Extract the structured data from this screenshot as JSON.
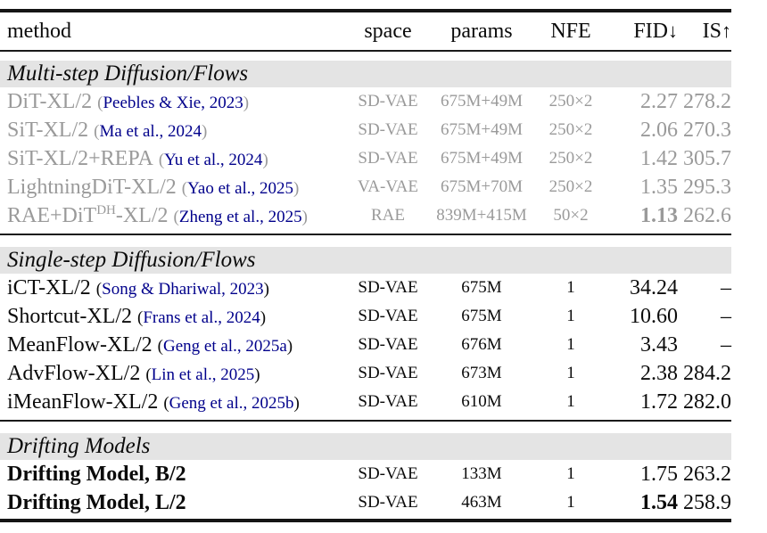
{
  "header": {
    "method": "method",
    "space": "space",
    "params": "params",
    "nfe": "NFE",
    "fid": "FID",
    "fid_arrow": "↓",
    "is": "IS",
    "is_arrow": "↑"
  },
  "colors": {
    "citation": "#00008b",
    "muted_text": "#9a9a9a",
    "section_band": "#e4e4e4"
  },
  "sections": [
    {
      "title": "Multi-step Diffusion/Flows",
      "muted": true,
      "rows": [
        {
          "method_pre": "DiT-XL/2",
          "method_sup": "",
          "method_post": "",
          "cite": "Peebles & Xie, 2023",
          "space": "SD-VAE",
          "params": "675M+49M",
          "nfe": "250×2",
          "fid": "2.27",
          "fid_bold": false,
          "is": "278.2",
          "method_bold": false
        },
        {
          "method_pre": "SiT-XL/2",
          "method_sup": "",
          "method_post": "",
          "cite": "Ma et al., 2024",
          "space": "SD-VAE",
          "params": "675M+49M",
          "nfe": "250×2",
          "fid": "2.06",
          "fid_bold": false,
          "is": "270.3",
          "method_bold": false
        },
        {
          "method_pre": "SiT-XL/2+REPA",
          "method_sup": "",
          "method_post": "",
          "cite": "Yu et al., 2024",
          "space": "SD-VAE",
          "params": "675M+49M",
          "nfe": "250×2",
          "fid": "1.42",
          "fid_bold": false,
          "is": "305.7",
          "method_bold": false
        },
        {
          "method_pre": "LightningDiT-XL/2",
          "method_sup": "",
          "method_post": "",
          "cite": "Yao et al., 2025",
          "space": "VA-VAE",
          "params": "675M+70M",
          "nfe": "250×2",
          "fid": "1.35",
          "fid_bold": false,
          "is": "295.3",
          "method_bold": false
        },
        {
          "method_pre": "RAE+DiT",
          "method_sup": "DH",
          "method_post": "-XL/2",
          "cite": "Zheng et al., 2025",
          "space": "RAE",
          "params": "839M+415M",
          "nfe": "50×2",
          "fid": "1.13",
          "fid_bold": true,
          "is": "262.6",
          "method_bold": false
        }
      ]
    },
    {
      "title": "Single-step Diffusion/Flows",
      "muted": false,
      "rows": [
        {
          "method_pre": "iCT-XL/2",
          "method_sup": "",
          "method_post": "",
          "cite": "Song & Dhariwal, 2023",
          "space": "SD-VAE",
          "params": "675M",
          "nfe": "1",
          "fid": "34.24",
          "fid_bold": false,
          "is": "–",
          "method_bold": false
        },
        {
          "method_pre": "Shortcut-XL/2",
          "method_sup": "",
          "method_post": "",
          "cite": "Frans et al., 2024",
          "space": "SD-VAE",
          "params": "675M",
          "nfe": "1",
          "fid": "10.60",
          "fid_bold": false,
          "is": "–",
          "method_bold": false
        },
        {
          "method_pre": "MeanFlow-XL/2",
          "method_sup": "",
          "method_post": "",
          "cite": "Geng et al., 2025a",
          "space": "SD-VAE",
          "params": "676M",
          "nfe": "1",
          "fid": "3.43",
          "fid_bold": false,
          "is": "–",
          "method_bold": false
        },
        {
          "method_pre": "AdvFlow-XL/2",
          "method_sup": "",
          "method_post": "",
          "cite": "Lin et al., 2025",
          "space": "SD-VAE",
          "params": "673M",
          "nfe": "1",
          "fid": "2.38",
          "fid_bold": false,
          "is": "284.2",
          "method_bold": false
        },
        {
          "method_pre": "iMeanFlow-XL/2",
          "method_sup": "",
          "method_post": "",
          "cite": "Geng et al., 2025b",
          "space": "SD-VAE",
          "params": "610M",
          "nfe": "1",
          "fid": "1.72",
          "fid_bold": false,
          "is": "282.0",
          "method_bold": false
        }
      ]
    },
    {
      "title": "Drifting Models",
      "muted": false,
      "rows": [
        {
          "method_pre": "Drifting Model, B/2",
          "method_sup": "",
          "method_post": "",
          "cite": "",
          "space": "SD-VAE",
          "params": "133M",
          "nfe": "1",
          "fid": "1.75",
          "fid_bold": false,
          "is": "263.2",
          "method_bold": true
        },
        {
          "method_pre": "Drifting Model, L/2",
          "method_sup": "",
          "method_post": "",
          "cite": "",
          "space": "SD-VAE",
          "params": "463M",
          "nfe": "1",
          "fid": "1.54",
          "fid_bold": true,
          "is": "258.9",
          "method_bold": true
        }
      ]
    }
  ]
}
